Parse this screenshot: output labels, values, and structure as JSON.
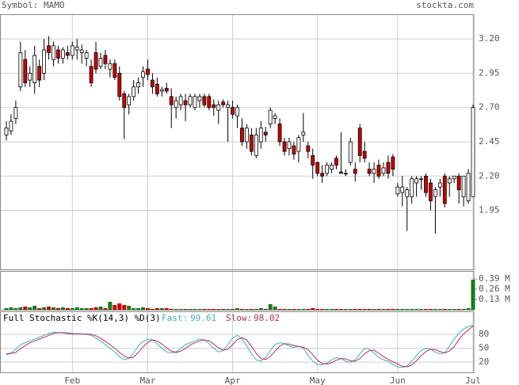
{
  "header": {
    "symbol": "Symbol: MAMO",
    "site": "stockta.com"
  },
  "chart_data": [
    {
      "type": "candlestick",
      "categories": [
        null,
        null,
        null,
        null,
        null,
        null,
        null,
        null,
        null,
        null,
        null,
        null,
        null,
        null,
        "Feb",
        null,
        null,
        null,
        null,
        null,
        null,
        null,
        null,
        null,
        null,
        null,
        null,
        null,
        null,
        null,
        "Mar",
        null,
        null,
        null,
        null,
        null,
        null,
        null,
        null,
        null,
        null,
        null,
        null,
        null,
        null,
        null,
        null,
        null,
        "Apr",
        null,
        null,
        null,
        null,
        null,
        null,
        null,
        null,
        null,
        null,
        null,
        null,
        null,
        null,
        null,
        null,
        null,
        "May",
        null,
        null,
        null,
        null,
        null,
        null,
        null,
        null,
        null,
        null,
        null,
        null,
        null,
        null,
        null,
        null,
        "Jun",
        null,
        null,
        null,
        null,
        null,
        null,
        null,
        null,
        null,
        null,
        null,
        null,
        null,
        null,
        null,
        "Jul"
      ],
      "open": [
        2.5,
        2.53,
        2.62,
        2.85,
        3.05,
        2.9,
        2.88,
        3.0,
        2.95,
        3.15,
        3.05,
        3.12,
        3.06,
        3.1,
        3.08,
        3.12,
        3.1,
        3.06,
        3.0,
        3.1,
        3.0,
        3.08,
        2.98,
        3.02,
        2.95,
        2.8,
        2.72,
        2.78,
        2.85,
        2.92,
        2.98,
        2.9,
        2.87,
        2.82,
        2.84,
        2.78,
        2.7,
        2.72,
        2.75,
        2.72,
        2.7,
        2.75,
        2.78,
        2.78,
        2.72,
        2.68,
        2.74,
        2.7,
        2.7,
        2.64,
        2.55,
        2.45,
        2.5,
        2.35,
        2.45,
        2.52,
        2.58,
        2.62,
        2.58,
        2.45,
        2.4,
        2.42,
        2.38,
        2.5,
        2.42,
        2.35,
        2.3,
        2.22,
        2.22,
        2.25,
        2.33,
        2.23,
        2.22,
        2.3,
        2.25,
        2.55,
        2.38,
        2.25,
        2.22,
        2.28,
        2.22,
        2.3,
        2.34,
        2.07,
        2.08,
        2.05,
        2.05,
        2.15,
        2.18,
        2.2,
        2.15,
        2.05,
        2.12,
        2.2,
        2.15,
        2.18,
        2.2,
        2.05,
        2.02,
        2.05
      ],
      "high": [
        2.6,
        2.65,
        2.75,
        3.18,
        3.12,
        3.0,
        3.15,
        3.05,
        3.2,
        3.22,
        3.18,
        3.15,
        3.14,
        3.15,
        3.18,
        3.2,
        3.16,
        3.12,
        3.05,
        3.18,
        3.1,
        3.12,
        3.05,
        3.05,
        3.0,
        2.82,
        2.8,
        2.9,
        2.92,
        3.0,
        3.05,
        2.95,
        2.92,
        2.85,
        2.88,
        2.84,
        2.78,
        2.8,
        2.8,
        2.8,
        2.8,
        2.8,
        2.8,
        2.8,
        2.76,
        2.75,
        2.76,
        2.75,
        2.75,
        2.72,
        2.62,
        2.58,
        2.55,
        2.55,
        2.6,
        2.56,
        2.7,
        2.66,
        2.62,
        2.48,
        2.48,
        2.45,
        2.5,
        2.66,
        2.45,
        2.4,
        2.3,
        2.28,
        2.3,
        2.3,
        2.35,
        2.52,
        2.25,
        2.48,
        2.3,
        2.58,
        2.45,
        2.3,
        2.3,
        2.32,
        2.3,
        2.35,
        2.36,
        2.15,
        2.2,
        2.12,
        2.2,
        2.2,
        2.2,
        2.22,
        2.18,
        2.12,
        2.18,
        2.22,
        2.2,
        2.2,
        2.22,
        2.2,
        2.25,
        2.72
      ],
      "low": [
        2.46,
        2.5,
        2.58,
        2.82,
        2.85,
        2.85,
        2.8,
        2.85,
        2.9,
        3.05,
        3.0,
        3.02,
        3.02,
        3.05,
        3.05,
        3.05,
        3.02,
        3.0,
        2.85,
        2.95,
        2.98,
        2.98,
        2.92,
        2.9,
        2.75,
        2.47,
        2.65,
        2.75,
        2.8,
        2.85,
        2.9,
        2.8,
        2.78,
        2.78,
        2.8,
        2.55,
        2.62,
        2.68,
        2.6,
        2.7,
        2.68,
        2.7,
        2.7,
        2.68,
        2.64,
        2.58,
        2.7,
        2.45,
        2.62,
        2.55,
        2.42,
        2.4,
        2.35,
        2.33,
        2.4,
        2.45,
        2.55,
        2.58,
        2.42,
        2.35,
        2.35,
        2.32,
        2.3,
        2.45,
        2.33,
        2.18,
        2.2,
        2.15,
        2.2,
        2.22,
        2.25,
        2.22,
        2.2,
        2.28,
        2.16,
        2.3,
        2.3,
        2.2,
        2.15,
        2.18,
        2.2,
        2.18,
        2.2,
        2.05,
        1.98,
        1.8,
        2.0,
        2.05,
        2.1,
        2.05,
        1.95,
        1.78,
        2.05,
        1.97,
        2.05,
        2.15,
        2.0,
        1.98,
        2.0,
        2.05
      ],
      "close": [
        2.55,
        2.6,
        2.7,
        3.1,
        2.88,
        2.95,
        3.08,
        2.9,
        3.12,
        3.1,
        3.15,
        3.06,
        3.12,
        3.08,
        3.15,
        3.14,
        3.12,
        3.1,
        2.88,
        2.98,
        3.06,
        3.02,
        3.02,
        2.92,
        2.78,
        2.7,
        2.78,
        2.85,
        2.88,
        2.96,
        2.94,
        2.85,
        2.8,
        2.83,
        2.82,
        2.72,
        2.75,
        2.78,
        2.72,
        2.78,
        2.78,
        2.78,
        2.72,
        2.7,
        2.7,
        2.72,
        2.72,
        2.72,
        2.65,
        2.7,
        2.45,
        2.55,
        2.38,
        2.5,
        2.55,
        2.5,
        2.68,
        2.64,
        2.45,
        2.38,
        2.45,
        2.36,
        2.48,
        2.52,
        2.38,
        2.28,
        2.22,
        2.2,
        2.28,
        2.28,
        2.28,
        2.22,
        2.22,
        2.45,
        2.22,
        2.35,
        2.33,
        2.22,
        2.25,
        2.2,
        2.26,
        2.22,
        2.25,
        2.12,
        2.12,
        2.1,
        2.18,
        2.18,
        2.18,
        2.08,
        2.02,
        2.1,
        2.15,
        2.0,
        2.18,
        2.2,
        2.1,
        2.2,
        2.22,
        2.7
      ],
      "up_color": "#ffffff",
      "down_color": "#cc0000",
      "ylim": [
        1.52,
        3.38
      ],
      "yticks": [
        {
          "value": 3.2,
          "label": "3.20"
        },
        2.95,
        {
          "value": 2.7,
          "label": "2.70"
        },
        2.45,
        {
          "value": 2.2,
          "label": "2.20"
        },
        1.95
      ],
      "grid": true
    },
    {
      "type": "bar",
      "values": [
        0.02,
        0.03,
        0.02,
        0.03,
        0.04,
        0.03,
        0.05,
        0.02,
        0.03,
        0.04,
        0.03,
        0.02,
        0.03,
        0.02,
        0.02,
        0.03,
        0.02,
        0.02,
        0.02,
        0.03,
        0.04,
        0.02,
        0.1,
        0.06,
        0.08,
        0.06,
        0.05,
        0.02,
        0.02,
        0.03,
        0.02,
        0.01,
        0.02,
        0.02,
        0.02,
        0.01,
        0.01,
        0.01,
        0.01,
        0.01,
        0.01,
        0.01,
        0.01,
        0.01,
        0.01,
        0.01,
        0.01,
        0.01,
        0.01,
        0.02,
        0.01,
        0.01,
        0.01,
        0.01,
        0.02,
        0.01,
        0.07,
        0.04,
        0.01,
        0.01,
        0.01,
        0.01,
        0.01,
        0.01,
        0.01,
        0.02,
        0.01,
        0.01,
        0.01,
        0.01,
        0.01,
        0.01,
        0.01,
        0.01,
        0.01,
        0.01,
        0.01,
        0.01,
        0.01,
        0.01,
        0.01,
        0.01,
        0.01,
        0.01,
        0.01,
        0.01,
        0.01,
        0.01,
        0.01,
        0.01,
        0.01,
        0.01,
        0.01,
        0.01,
        0.01,
        0.01,
        0.01,
        0.01,
        0.02,
        0.38
      ],
      "up_color": "#1a7a1a",
      "down_color": "#cc0000",
      "ylim": [
        0,
        0.49
      ],
      "yticks": [
        {
          "value": 0.39,
          "label": "0.39 M"
        },
        {
          "value": 0.26,
          "label": "0.26 M"
        },
        {
          "value": 0.13,
          "label": "0.13 M"
        }
      ]
    },
    {
      "type": "line",
      "title": "Full Stochastic %K(14,3) %D(3)",
      "series": [
        {
          "name": "Fast:",
          "color": "#40b0b0",
          "values": [
            35,
            40,
            48,
            58,
            62,
            66,
            70,
            74,
            78,
            82,
            85,
            84,
            83,
            82,
            80,
            82,
            81,
            80,
            78,
            72,
            66,
            58,
            50,
            42,
            32,
            26,
            28,
            40,
            55,
            65,
            70,
            68,
            60,
            50,
            42,
            40,
            42,
            50,
            58,
            62,
            66,
            70,
            68,
            60,
            50,
            42,
            45,
            58,
            72,
            78,
            70,
            55,
            38,
            25,
            22,
            30,
            45,
            58,
            62,
            60,
            55,
            52,
            55,
            50,
            35,
            22,
            15,
            14,
            18,
            25,
            30,
            28,
            22,
            20,
            25,
            38,
            50,
            48,
            40,
            30,
            25,
            22,
            15,
            10,
            8,
            12,
            22,
            35,
            45,
            50,
            48,
            42,
            38,
            40,
            55,
            70,
            82,
            92,
            97,
            99.61
          ]
        },
        {
          "name": "Slow:",
          "color": "#b03060",
          "values": [
            38,
            39,
            41,
            49,
            56,
            62,
            66,
            70,
            74,
            78,
            82,
            84,
            84,
            83,
            82,
            81,
            81,
            81,
            80,
            77,
            72,
            65,
            58,
            50,
            41,
            33,
            29,
            31,
            41,
            53,
            63,
            68,
            66,
            59,
            51,
            44,
            41,
            44,
            50,
            57,
            62,
            66,
            68,
            66,
            59,
            51,
            46,
            48,
            58,
            69,
            73,
            68,
            54,
            39,
            28,
            26,
            32,
            44,
            55,
            60,
            59,
            56,
            54,
            52,
            47,
            36,
            24,
            17,
            16,
            19,
            24,
            28,
            27,
            23,
            22,
            28,
            38,
            45,
            46,
            39,
            32,
            26,
            21,
            16,
            11,
            10,
            14,
            23,
            34,
            43,
            48,
            47,
            43,
            40,
            44,
            54,
            69,
            81,
            90,
            98.02
          ]
        }
      ],
      "ylim": [
        -2,
        130
      ],
      "yticks": [
        80,
        50,
        20
      ]
    }
  ]
}
